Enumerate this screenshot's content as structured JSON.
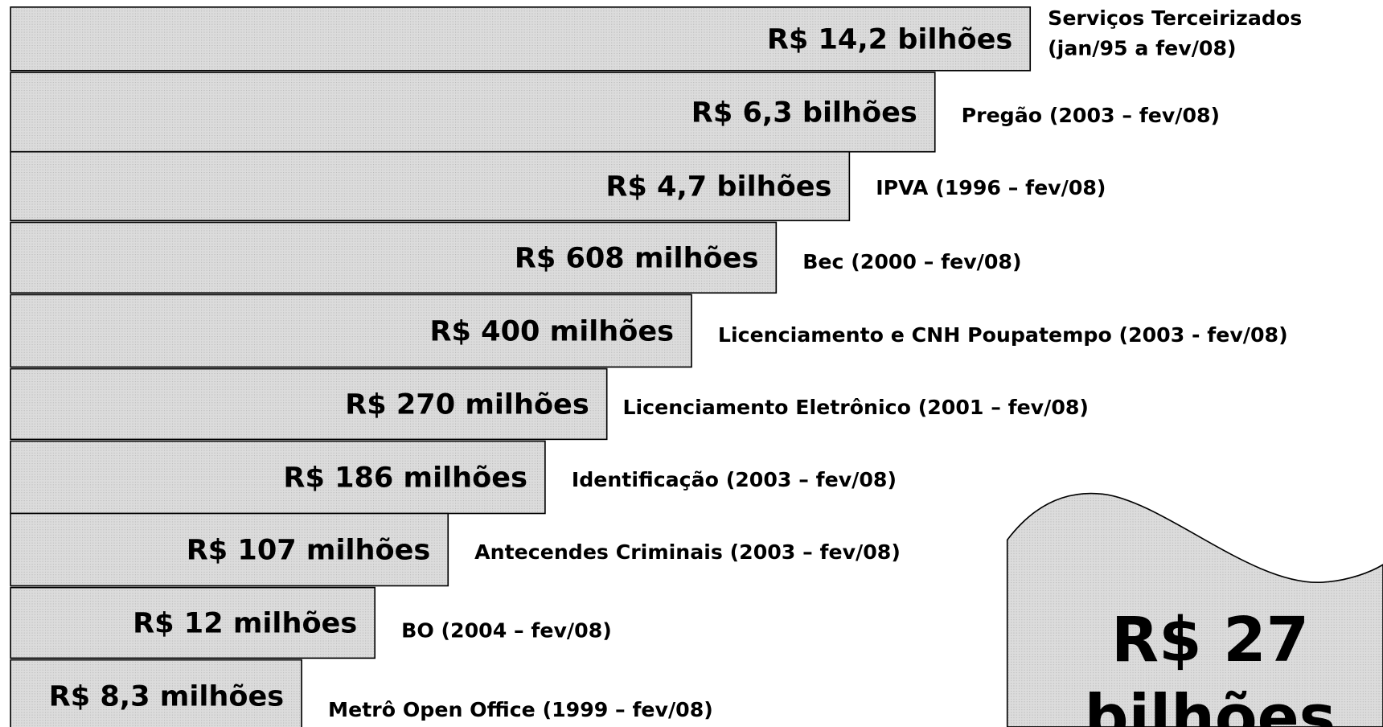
{
  "rows": [
    {
      "value": "R$ 14,2 bilhões",
      "label": [
        "Serviços Terceirizados",
        "(jan/95 a fev/08)"
      ]
    },
    {
      "value": "R$ 6,3 bilhões",
      "label": [
        "Pregão (2003 – fev/08)"
      ]
    },
    {
      "value": "R$ 4,7 bilhões",
      "label": [
        "IPVA (1996 – fev/08)"
      ]
    },
    {
      "value": "R$ 608 milhões",
      "label": [
        "Bec (2000 – fev/08)"
      ]
    },
    {
      "value": "R$ 400 milhões",
      "label": [
        "Licenciamento e CNH Poupatempo (2003 - fev/08)"
      ]
    },
    {
      "value": "R$ 270 milhões",
      "label": [
        "Licenciamento Eletrônico (2001 – fev/08)"
      ]
    },
    {
      "value": "R$ 186 milhões",
      "label": [
        "Identificação (2003 – fev/08)"
      ]
    },
    {
      "value": "R$ 107 milhões",
      "label": [
        "Antecendes Criminais (2003 – fev/08)"
      ]
    },
    {
      "value": "R$ 12 milhões",
      "label": [
        "BO (2004 – fev/08)"
      ]
    },
    {
      "value": "R$ 8,3 milhões",
      "label": [
        "Metrô Open Office (1999 – fev/08)"
      ]
    }
  ],
  "total": [
    "R$ 27",
    "bilhões"
  ]
}
